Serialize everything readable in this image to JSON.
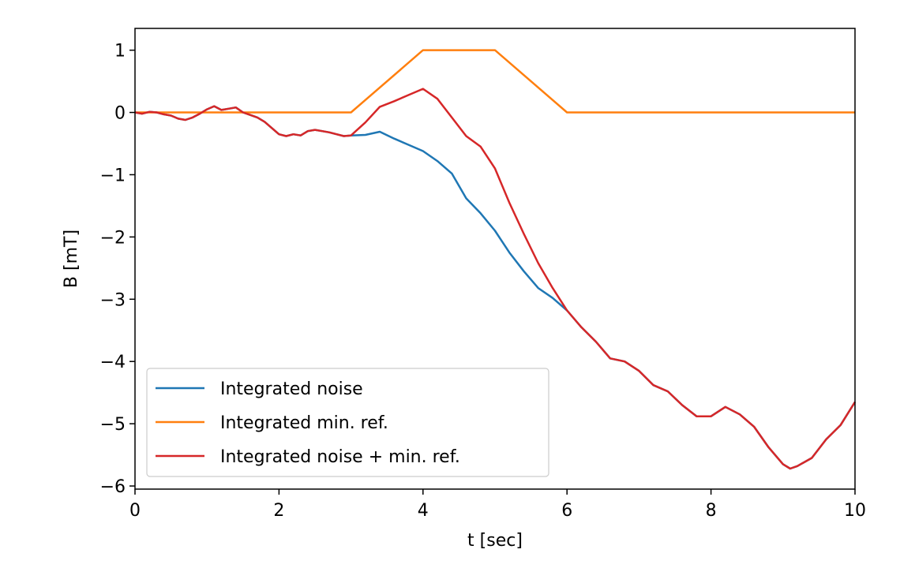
{
  "chart_data": {
    "type": "line",
    "title": "",
    "xlabel": "t [sec]",
    "ylabel": "B [mT]",
    "xlim": [
      0,
      10
    ],
    "ylim": [
      -6.05,
      1.35
    ],
    "xticks": [
      0,
      2,
      4,
      6,
      8,
      10
    ],
    "yticks": [
      1,
      0,
      -1,
      -2,
      -3,
      -4,
      -5,
      -6
    ],
    "xtick_labels": [
      "0",
      "2",
      "4",
      "6",
      "8",
      "10"
    ],
    "ytick_labels": [
      "1",
      "0",
      "−1",
      "−2",
      "−3",
      "−4",
      "−5",
      "−6"
    ],
    "grid": false,
    "legend_position": "lower-left",
    "series": [
      {
        "name": "Integrated noise",
        "color": "#1f77b4",
        "x": [
          0,
          0.1,
          0.2,
          0.3,
          0.4,
          0.5,
          0.6,
          0.7,
          0.8,
          0.9,
          1.0,
          1.1,
          1.2,
          1.3,
          1.4,
          1.5,
          1.6,
          1.7,
          1.8,
          1.9,
          2.0,
          2.1,
          2.2,
          2.3,
          2.4,
          2.5,
          2.6,
          2.7,
          2.8,
          2.9,
          3.0,
          3.2,
          3.4,
          3.6,
          3.8,
          4.0,
          4.2,
          4.4,
          4.6,
          4.8,
          5.0,
          5.2,
          5.4,
          5.6,
          5.8,
          6.0,
          6.2,
          6.4,
          6.6,
          6.8,
          7.0,
          7.2,
          7.4,
          7.6,
          7.8,
          8.0,
          8.2,
          8.4,
          8.6,
          8.8,
          9.0,
          9.1,
          9.2,
          9.4,
          9.6,
          9.8,
          10.0
        ],
        "y": [
          0.0,
          -0.02,
          0.01,
          0.0,
          -0.03,
          -0.05,
          -0.1,
          -0.12,
          -0.08,
          -0.02,
          0.05,
          0.1,
          0.04,
          0.06,
          0.08,
          0.0,
          -0.04,
          -0.08,
          -0.15,
          -0.25,
          -0.35,
          -0.38,
          -0.35,
          -0.37,
          -0.3,
          -0.28,
          -0.3,
          -0.32,
          -0.35,
          -0.38,
          -0.37,
          -0.36,
          -0.31,
          -0.42,
          -0.52,
          -0.62,
          -0.78,
          -0.98,
          -1.38,
          -1.62,
          -1.9,
          -2.25,
          -2.55,
          -2.82,
          -2.98,
          -3.18,
          -3.45,
          -3.68,
          -3.95,
          -4.0,
          -4.15,
          -4.38,
          -4.48,
          -4.7,
          -4.88,
          -4.88,
          -4.73,
          -4.85,
          -5.05,
          -5.38,
          -5.65,
          -5.72,
          -5.68,
          -5.55,
          -5.25,
          -5.02,
          -4.65
        ]
      },
      {
        "name": "Integrated min. ref.",
        "color": "#ff7f0e",
        "x": [
          0,
          3,
          4,
          5,
          6,
          10
        ],
        "y": [
          0,
          0,
          1,
          1,
          0,
          0
        ]
      },
      {
        "name": "Integrated noise + min. ref.",
        "color": "#d62728",
        "x": [
          0,
          0.1,
          0.2,
          0.3,
          0.4,
          0.5,
          0.6,
          0.7,
          0.8,
          0.9,
          1.0,
          1.1,
          1.2,
          1.3,
          1.4,
          1.5,
          1.6,
          1.7,
          1.8,
          1.9,
          2.0,
          2.1,
          2.2,
          2.3,
          2.4,
          2.5,
          2.6,
          2.7,
          2.8,
          2.9,
          3.0,
          3.2,
          3.4,
          3.6,
          3.8,
          4.0,
          4.2,
          4.4,
          4.6,
          4.8,
          5.0,
          5.2,
          5.4,
          5.6,
          5.8,
          6.0,
          6.2,
          6.4,
          6.6,
          6.8,
          7.0,
          7.2,
          7.4,
          7.6,
          7.8,
          8.0,
          8.2,
          8.4,
          8.6,
          8.8,
          9.0,
          9.1,
          9.2,
          9.4,
          9.6,
          9.8,
          10.0
        ],
        "y": [
          0.0,
          -0.02,
          0.01,
          0.0,
          -0.03,
          -0.05,
          -0.1,
          -0.12,
          -0.08,
          -0.02,
          0.05,
          0.1,
          0.04,
          0.06,
          0.08,
          0.0,
          -0.04,
          -0.08,
          -0.15,
          -0.25,
          -0.35,
          -0.38,
          -0.35,
          -0.37,
          -0.3,
          -0.28,
          -0.3,
          -0.32,
          -0.35,
          -0.38,
          -0.37,
          -0.16,
          0.09,
          0.18,
          0.28,
          0.38,
          0.22,
          -0.08,
          -0.38,
          -0.55,
          -0.9,
          -1.45,
          -1.95,
          -2.42,
          -2.82,
          -3.18,
          -3.45,
          -3.68,
          -3.95,
          -4.0,
          -4.15,
          -4.38,
          -4.48,
          -4.7,
          -4.88,
          -4.88,
          -4.73,
          -4.85,
          -5.05,
          -5.38,
          -5.65,
          -5.72,
          -5.68,
          -5.55,
          -5.25,
          -5.02,
          -4.65
        ]
      }
    ]
  }
}
